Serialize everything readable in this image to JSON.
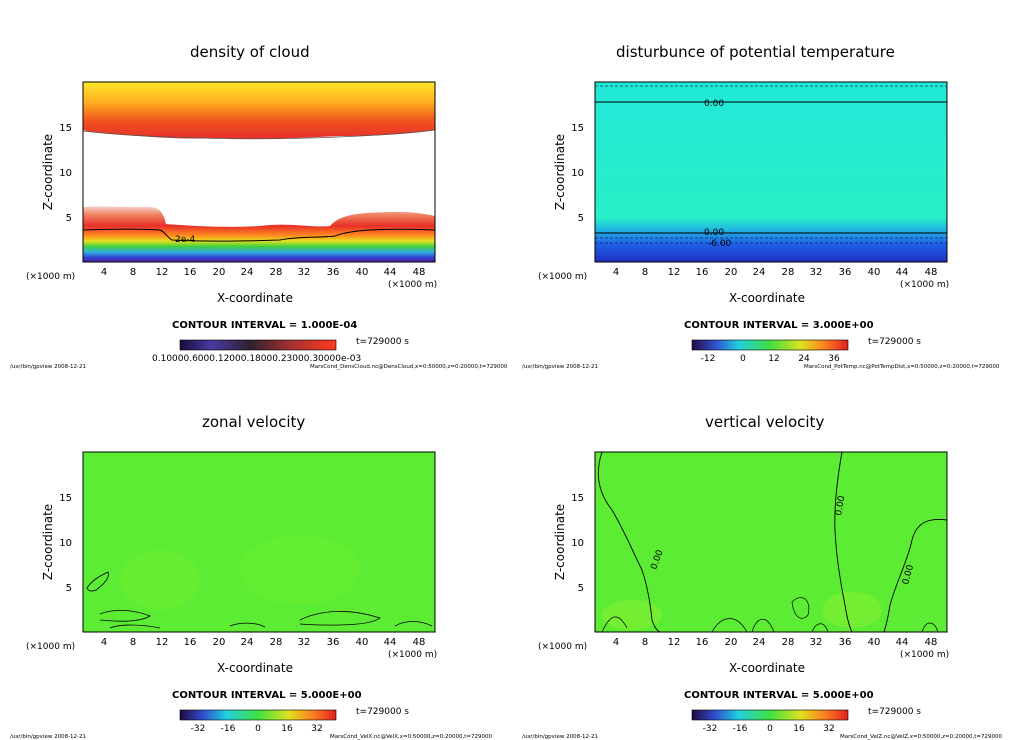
{
  "chart_data": [
    {
      "type": "heatmap",
      "title": "density of cloud",
      "xlabel": "X-coordinate",
      "ylabel": "Z-coordinate",
      "x_unit": "(×1000 m)",
      "xlim": [
        0,
        50
      ],
      "ylim": [
        0,
        20
      ],
      "xticks": [
        4,
        8,
        12,
        16,
        20,
        24,
        28,
        32,
        36,
        40,
        44,
        48
      ],
      "yticks": [
        5,
        10,
        15
      ],
      "contour_interval": "CONTOUR INTERVAL = 1.000E-04",
      "time": "t=729000 s",
      "colorbar_labels": "0.10000.6000.12000.18000.23000.30000e-03",
      "contour_labels": [
        "2e-4"
      ],
      "footer_left": "/usr/bin/gpview   2008-12-21",
      "footer_right": "MarsCond_DensCloud.nc@DensCloud,x=0:50000,z=0:20000,t=729000"
    },
    {
      "type": "heatmap",
      "title": "disturbunce of potential temperature",
      "xlabel": "X-coordinate",
      "ylabel": "Z-coordinate",
      "x_unit": "(×1000 m)",
      "xlim": [
        0,
        50
      ],
      "ylim": [
        0,
        20
      ],
      "xticks": [
        4,
        8,
        12,
        16,
        20,
        24,
        28,
        32,
        36,
        40,
        44,
        48
      ],
      "yticks": [
        5,
        10,
        15
      ],
      "contour_interval": "CONTOUR INTERVAL = 3.000E+00",
      "time": "t=729000 s",
      "colorbar_ticks": [
        "-12",
        "0",
        "12",
        "24",
        "36"
      ],
      "contour_labels": [
        "0.00",
        "0.00",
        "-6.00"
      ],
      "footer_left": "/usr/bin/gpview   2008-12-21",
      "footer_right": "MarsCond_PotTemp.nc@PotTempDist,x=0:50000,z=0:20000,t=729000"
    },
    {
      "type": "heatmap",
      "title": "zonal velocity",
      "xlabel": "X-coordinate",
      "ylabel": "Z-coordinate",
      "x_unit": "(×1000 m)",
      "xlim": [
        0,
        50
      ],
      "ylim": [
        0,
        20
      ],
      "xticks": [
        4,
        8,
        12,
        16,
        20,
        24,
        28,
        32,
        36,
        40,
        44,
        48
      ],
      "yticks": [
        5,
        10,
        15
      ],
      "contour_interval": "CONTOUR INTERVAL = 5.000E+00",
      "time": "t=729000 s",
      "colorbar_ticks": [
        "-32",
        "-16",
        "0",
        "16",
        "32"
      ],
      "contour_labels": [],
      "footer_left": "/usr/bin/gpview   2008-12-21",
      "footer_right": "MarsCond_VelX.nc@VelX,x=0:50000,z=0:20000,t=729000"
    },
    {
      "type": "heatmap",
      "title": "vertical velocity",
      "xlabel": "X-coordinate",
      "ylabel": "Z-coordinate",
      "x_unit": "(×1000 m)",
      "xlim": [
        0,
        50
      ],
      "ylim": [
        0,
        20
      ],
      "xticks": [
        4,
        8,
        12,
        16,
        20,
        24,
        28,
        32,
        36,
        40,
        44,
        48
      ],
      "yticks": [
        5,
        10,
        15
      ],
      "contour_interval": "CONTOUR INTERVAL = 5.000E+00",
      "time": "t=729000 s",
      "colorbar_ticks": [
        "-32",
        "-16",
        "0",
        "16",
        "32"
      ],
      "contour_labels": [
        "0.00",
        "0.00",
        "0.00"
      ],
      "footer_left": "/usr/bin/gpview   2008-12-21",
      "footer_right": "MarsCond_VelZ.nc@VelZ,x=0:50000,z=0:20000,t=729000"
    }
  ]
}
